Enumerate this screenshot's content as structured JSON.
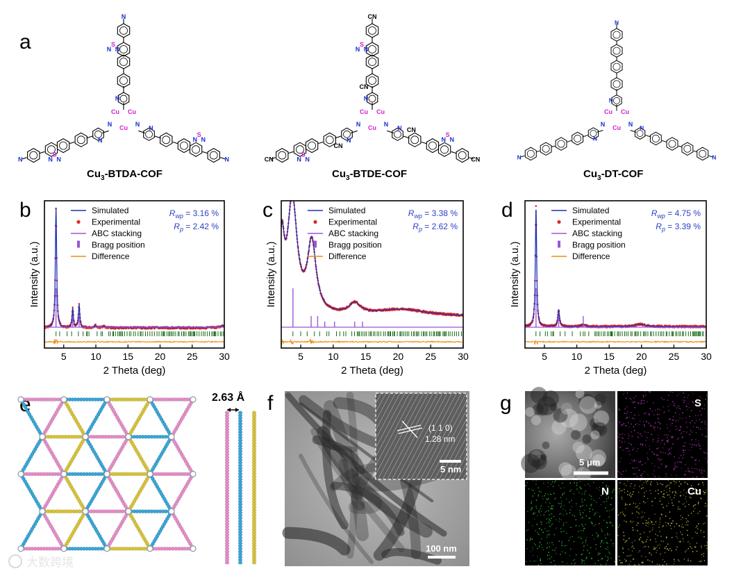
{
  "panel_labels": {
    "a": "a",
    "b": "b",
    "c": "c",
    "d": "d",
    "e": "e",
    "f": "f",
    "g": "g"
  },
  "cof_names": [
    {
      "base": "Cu",
      "sub": "3",
      "suffix": "-BTDA-COF"
    },
    {
      "base": "Cu",
      "sub": "3",
      "suffix": "-BTDE-COF"
    },
    {
      "base": "Cu",
      "sub": "3",
      "suffix": "-DT-COF"
    }
  ],
  "atom_labels": {
    "cu": "Cu",
    "n": "N",
    "s": "S",
    "cn": "CN"
  },
  "colors": {
    "simulated": "#1f2fb0",
    "experimental": "#e02a2a",
    "abc": "#9b55d8",
    "bragg": "#1a6a1a",
    "difference": "#f08a10",
    "stats": "#2b3fc7",
    "layer_pink": "#e58ec8",
    "layer_blue": "#3aa6d8",
    "layer_yellow": "#d8c43a",
    "map_s": "#c83ad0",
    "map_n": "#38d238",
    "map_cu": "#d8d040"
  },
  "chart_data": [
    {
      "type": "line",
      "panel": "b",
      "xlabel": "2 Theta (deg)",
      "ylabel": "Intensity (a.u.)",
      "xlim": [
        2,
        30
      ],
      "xticks": [
        5,
        10,
        15,
        20,
        25,
        30
      ],
      "legend": [
        "Simulated",
        "Experimental",
        "ABC stacking",
        "Bragg position",
        "Difference"
      ],
      "legend_position": "top-center",
      "stats": [
        {
          "symbol": "R",
          "sub": "wp",
          "value": " = 3.16 %"
        },
        {
          "symbol": "R",
          "sub": "p",
          "value": " = 2.42 %"
        }
      ],
      "background": 0.03,
      "peaks": [
        [
          3.8,
          1.0,
          0.12
        ],
        [
          6.4,
          0.16,
          0.12
        ],
        [
          7.4,
          0.19,
          0.12
        ],
        [
          9.9,
          0.02,
          0.2
        ],
        [
          11.2,
          0.015,
          0.2
        ],
        [
          29.8,
          0.02,
          0.4
        ]
      ],
      "abc_peaks": [
        3.8,
        6.4,
        7.4
      ],
      "bragg_range": [
        3.8,
        30
      ]
    },
    {
      "type": "line",
      "panel": "c",
      "xlabel": "2 Theta (deg)",
      "ylabel": "Intensity (a.u.)",
      "xlim": [
        2,
        30
      ],
      "xticks": [
        5,
        10,
        15,
        20,
        25,
        30
      ],
      "legend": [
        "Simulated",
        "Experimental",
        "ABC stacking",
        "Bragg position",
        "Difference"
      ],
      "legend_position": "top-center",
      "stats": [
        {
          "symbol": "R",
          "sub": "wp",
          "value": " = 3.38 %"
        },
        {
          "symbol": "R",
          "sub": "p",
          "value": " = 2.62 %"
        }
      ],
      "background": 0.12,
      "peaks": [
        [
          2.1,
          0.55,
          0.45
        ],
        [
          3.7,
          0.95,
          0.9
        ],
        [
          6.7,
          0.58,
          0.8
        ],
        [
          13.3,
          0.09,
          1.1
        ],
        [
          20.5,
          0.06,
          5.0
        ]
      ],
      "abc_peaks": [
        3.8,
        6.6,
        7.6,
        8.7,
        10.2,
        13.3,
        14.5
      ],
      "bragg_range": [
        3.8,
        30
      ]
    },
    {
      "type": "line",
      "panel": "d",
      "xlabel": "2 Theta (deg)",
      "ylabel": "Intensity (a.u.)",
      "xlim": [
        2,
        30
      ],
      "xticks": [
        5,
        10,
        15,
        20,
        25,
        30
      ],
      "legend": [
        "Simulated",
        "Experimental",
        "ABC stacking",
        "Bragg position",
        "Difference"
      ],
      "legend_position": "top-center",
      "stats": [
        {
          "symbol": "R",
          "sub": "wp",
          "value": " = 4.75 %"
        },
        {
          "symbol": "R",
          "sub": "p",
          "value": " = 3.39 %"
        }
      ],
      "background": 0.04,
      "peaks": [
        [
          3.7,
          1.0,
          0.12
        ],
        [
          7.2,
          0.14,
          0.15
        ],
        [
          11.0,
          0.02,
          0.3
        ],
        [
          19.8,
          0.02,
          1.0
        ]
      ],
      "abc_peaks": [
        3.7,
        7.2,
        11.0
      ],
      "bragg_range": [
        3.7,
        30
      ]
    }
  ],
  "panel_e": {
    "distance": "2.63 Å"
  },
  "panel_f": {
    "scale_main": "100 nm",
    "scale_inset": "5 nm",
    "plane": "(1 1 0)",
    "spacing": "1.28 nm"
  },
  "panel_g": {
    "scale": "5 μm",
    "maps": [
      "S",
      "N",
      "Cu"
    ]
  },
  "watermark": "大数跨境"
}
